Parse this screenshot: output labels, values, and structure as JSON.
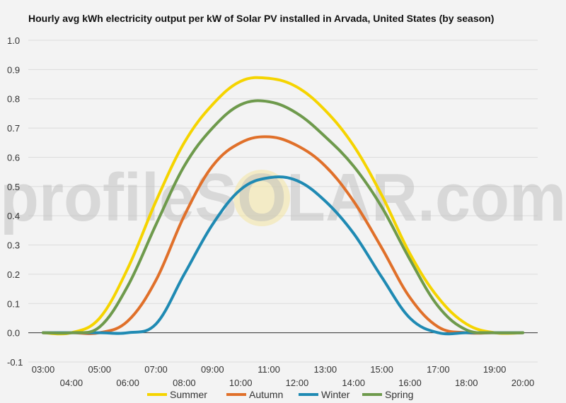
{
  "watermark": "profileSOLAR.com",
  "chart_data": {
    "type": "line",
    "title": "Hourly avg kWh electricity output per kW of Solar PV installed in Arvada, United States (by season)",
    "xlabel": "",
    "ylabel": "",
    "ylim": [
      -0.1,
      1.0
    ],
    "y_ticks": [
      "1.0",
      "0.9",
      "0.8",
      "0.7",
      "0.6",
      "0.5",
      "0.4",
      "0.3",
      "0.2",
      "0.1",
      "0.0",
      "-0.1"
    ],
    "y_tick_values": [
      1.0,
      0.9,
      0.8,
      0.7,
      0.6,
      0.5,
      0.4,
      0.3,
      0.2,
      0.1,
      0.0,
      -0.1
    ],
    "categories": [
      "03:00",
      "04:00",
      "05:00",
      "06:00",
      "07:00",
      "08:00",
      "09:00",
      "10:00",
      "11:00",
      "12:00",
      "13:00",
      "14:00",
      "15:00",
      "16:00",
      "17:00",
      "18:00",
      "19:00",
      "20:00"
    ],
    "grid": true,
    "legend_position": "bottom",
    "series": [
      {
        "name": "Summer",
        "color": "#f5d400",
        "values": [
          0.0,
          0.0,
          0.05,
          0.22,
          0.45,
          0.65,
          0.78,
          0.86,
          0.87,
          0.84,
          0.76,
          0.64,
          0.47,
          0.27,
          0.12,
          0.03,
          0.0,
          0.0
        ]
      },
      {
        "name": "Autumn",
        "color": "#e0702a",
        "values": [
          0.0,
          0.0,
          0.0,
          0.04,
          0.18,
          0.4,
          0.57,
          0.65,
          0.67,
          0.64,
          0.57,
          0.45,
          0.29,
          0.12,
          0.02,
          0.0,
          0.0,
          0.0
        ]
      },
      {
        "name": "Winter",
        "color": "#1f8ab3",
        "values": [
          0.0,
          0.0,
          0.0,
          0.0,
          0.03,
          0.2,
          0.37,
          0.49,
          0.53,
          0.52,
          0.45,
          0.34,
          0.19,
          0.05,
          0.0,
          0.0,
          0.0,
          0.0
        ]
      },
      {
        "name": "Spring",
        "color": "#6e9a4c",
        "values": [
          0.0,
          0.0,
          0.02,
          0.16,
          0.37,
          0.57,
          0.7,
          0.78,
          0.79,
          0.75,
          0.67,
          0.57,
          0.43,
          0.25,
          0.09,
          0.01,
          0.0,
          0.0
        ]
      }
    ]
  }
}
